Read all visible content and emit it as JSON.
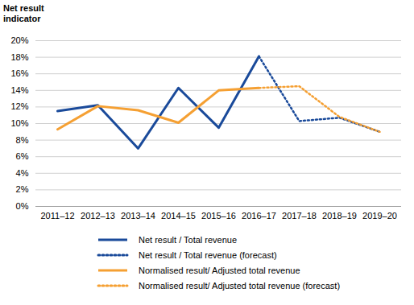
{
  "chart_data": {
    "type": "line",
    "y_label": "Net result indicator",
    "categories": [
      "2011–12",
      "2012–13",
      "2013–14",
      "2014–15",
      "2015–16",
      "2016–17",
      "2017–18",
      "2018–19",
      "2019–20"
    ],
    "series": [
      {
        "name": "Net result / Total revenue",
        "color": "#1a4a9a",
        "line_style": "solid",
        "values": [
          11.5,
          12.2,
          7.0,
          14.3,
          9.5,
          18.1,
          null,
          null,
          null
        ]
      },
      {
        "name": "Net result / Total revenue (forecast)",
        "color": "#1a4a9a",
        "line_style": "dotted",
        "values": [
          null,
          null,
          null,
          null,
          null,
          18.1,
          10.3,
          10.7,
          9.0
        ]
      },
      {
        "name": "Normalised result/ Adjusted total revenue",
        "color": "#f5a033",
        "line_style": "solid",
        "values": [
          9.3,
          12.1,
          11.6,
          10.1,
          14.0,
          14.3,
          null,
          null,
          null
        ]
      },
      {
        "name": "Normalised result/ Adjusted total revenue (forecast)",
        "color": "#f5a033",
        "line_style": "dotted",
        "values": [
          null,
          null,
          null,
          null,
          null,
          14.3,
          14.5,
          10.8,
          9.0
        ]
      }
    ],
    "ylim": [
      0,
      20
    ],
    "yticks": [
      {
        "value": 0,
        "label": "0%"
      },
      {
        "value": 2,
        "label": "2%"
      },
      {
        "value": 4,
        "label": "4%"
      },
      {
        "value": 6,
        "label": "6%"
      },
      {
        "value": 8,
        "label": "8%"
      },
      {
        "value": 10,
        "label": "10%"
      },
      {
        "value": 12,
        "label": "12%"
      },
      {
        "value": 14,
        "label": "14%"
      },
      {
        "value": 16,
        "label": "16%"
      },
      {
        "value": 18,
        "label": "18%"
      },
      {
        "value": 20,
        "label": "20%"
      }
    ],
    "grid": true,
    "legend": "bottom"
  }
}
